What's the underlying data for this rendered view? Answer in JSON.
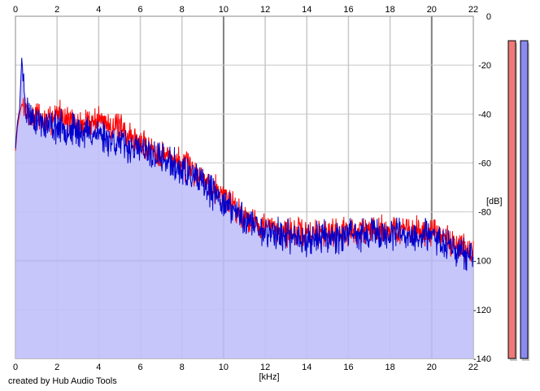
{
  "credit": "created by Hub Audio Tools",
  "colors": {
    "left_channel": "#ff0000",
    "right_channel": "#0000cc",
    "fill": "#c0c0fa",
    "grid": "#c8c8c8",
    "major_grid": "#808080",
    "meter_left": "#f07878",
    "meter_right": "#8a8af0"
  },
  "chart_data": {
    "type": "line",
    "title": "",
    "xlabel": "[kHz]",
    "ylabel": "[dB]",
    "xlim": [
      0,
      22
    ],
    "ylim": [
      -140,
      0
    ],
    "x_ticks": [
      "0",
      "2",
      "4",
      "6",
      "8",
      "10",
      "12",
      "14",
      "16",
      "18",
      "20",
      "22"
    ],
    "y_ticks": [
      "0",
      "-20",
      "-40",
      "-60",
      "-80",
      "-100",
      "-120",
      "-140"
    ],
    "x_tick_values": [
      0,
      2,
      4,
      6,
      8,
      10,
      12,
      14,
      16,
      18,
      20,
      22
    ],
    "y_tick_values": [
      0,
      -20,
      -40,
      -60,
      -80,
      -100,
      -120,
      -140
    ],
    "grid": true,
    "envelope_khz": [
      0,
      0.1,
      0.2,
      0.3,
      0.5,
      0.7,
      1,
      1.5,
      2,
      3,
      4,
      5,
      6,
      7,
      8,
      9,
      10,
      11,
      12,
      13,
      14,
      15,
      16,
      17,
      18,
      19,
      20,
      21,
      22
    ],
    "series": [
      {
        "color": "#ff0000",
        "values": [
          -55,
          -45,
          -40,
          -36,
          -38,
          -42,
          -40,
          -44,
          -39,
          -45,
          -42,
          -46,
          -52,
          -56,
          -60,
          -66,
          -73,
          -82,
          -86,
          -88,
          -89,
          -88,
          -88,
          -87,
          -87,
          -88,
          -88,
          -92,
          -97
        ]
      },
      {
        "color": "#0000cc",
        "values": [
          -54,
          -43,
          -38,
          -17,
          -38,
          -40,
          -42,
          -45,
          -45,
          -47,
          -48,
          -52,
          -55,
          -58,
          -63,
          -69,
          -76,
          -83,
          -88,
          -90,
          -91,
          -90,
          -90,
          -89,
          -89,
          -90,
          -90,
          -94,
          -99
        ]
      }
    ],
    "level_meters": [
      {
        "color": "#f07878",
        "value_db": -10
      },
      {
        "color": "#8a8af0",
        "value_db": -10
      }
    ]
  }
}
